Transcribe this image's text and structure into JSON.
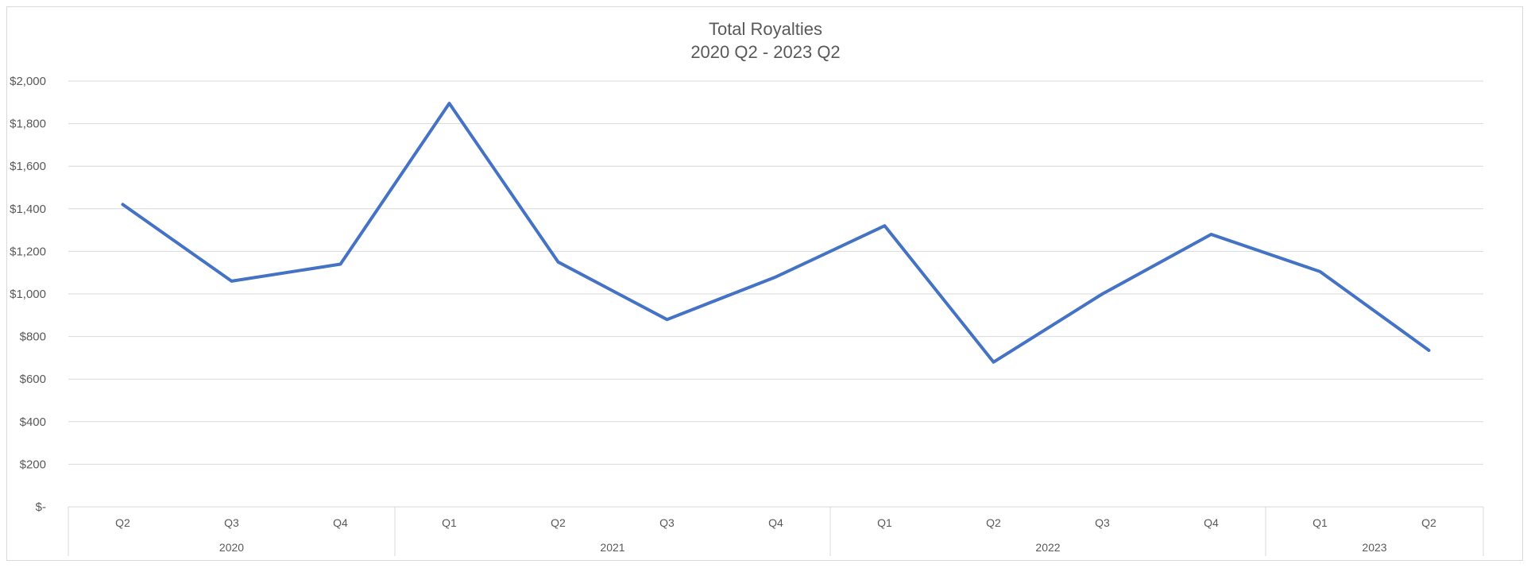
{
  "chart_data": {
    "type": "line",
    "title": "Total Royalties",
    "subtitle": "2020 Q2 - 2023 Q2",
    "categories": [
      "Q2",
      "Q3",
      "Q4",
      "Q1",
      "Q2",
      "Q3",
      "Q4",
      "Q1",
      "Q2",
      "Q3",
      "Q4",
      "Q1",
      "Q2"
    ],
    "groups": [
      {
        "label": "2020",
        "count": 3
      },
      {
        "label": "2021",
        "count": 4
      },
      {
        "label": "2022",
        "count": 4
      },
      {
        "label": "2023",
        "count": 2
      }
    ],
    "series": [
      {
        "values": [
          1420,
          1060,
          1140,
          1895,
          1150,
          880,
          1080,
          1320,
          680,
          1000,
          1280,
          1105,
          735
        ]
      }
    ],
    "ylim": [
      0,
      2000
    ],
    "yticks": [
      0,
      200,
      400,
      600,
      800,
      1000,
      1200,
      1400,
      1600,
      1800,
      2000
    ],
    "ytick_labels": [
      "$-",
      "$200",
      "$400",
      "$600",
      "$800",
      "$1,000",
      "$1,200",
      "$1,400",
      "$1,600",
      "$1,800",
      "$2,000"
    ],
    "grid": true,
    "legend": "none",
    "colors": {
      "series": "#4472c4",
      "grid": "#d9d9d9",
      "text": "#595959"
    }
  }
}
